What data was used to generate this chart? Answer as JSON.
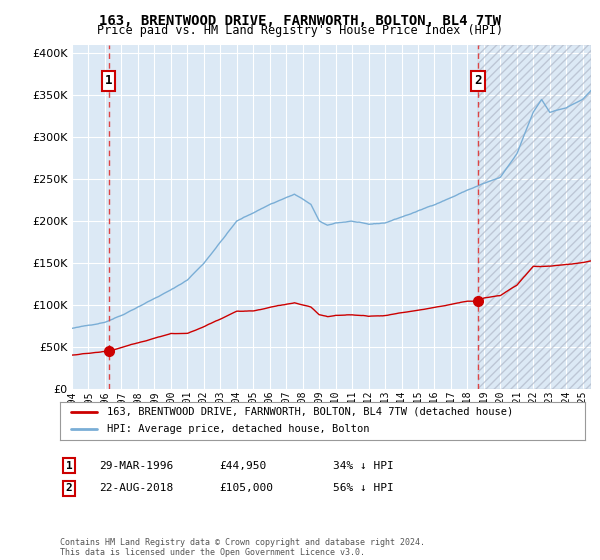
{
  "title": "163, BRENTWOOD DRIVE, FARNWORTH, BOLTON, BL4 7TW",
  "subtitle": "Price paid vs. HM Land Registry's House Price Index (HPI)",
  "sale1_year": 1996.22,
  "sale1_price": 44950,
  "sale1_label": "1",
  "sale1_date": "29-MAR-1996",
  "sale1_pct": "34% ↓ HPI",
  "sale2_year": 2018.64,
  "sale2_price": 105000,
  "sale2_label": "2",
  "sale2_date": "22-AUG-2018",
  "sale2_pct": "56% ↓ HPI",
  "xmin": 1994.0,
  "xmax": 2025.5,
  "ymin": 0,
  "ymax": 410000,
  "yticks": [
    0,
    50000,
    100000,
    150000,
    200000,
    250000,
    300000,
    350000,
    400000
  ],
  "bg_color": "#dce9f5",
  "line_red": "#cc0000",
  "line_blue": "#7aaed6",
  "legend1": "163, BRENTWOOD DRIVE, FARNWORTH, BOLTON, BL4 7TW (detached house)",
  "legend2": "HPI: Average price, detached house, Bolton",
  "footer": "Contains HM Land Registry data © Crown copyright and database right 2024.\nThis data is licensed under the Open Government Licence v3.0."
}
